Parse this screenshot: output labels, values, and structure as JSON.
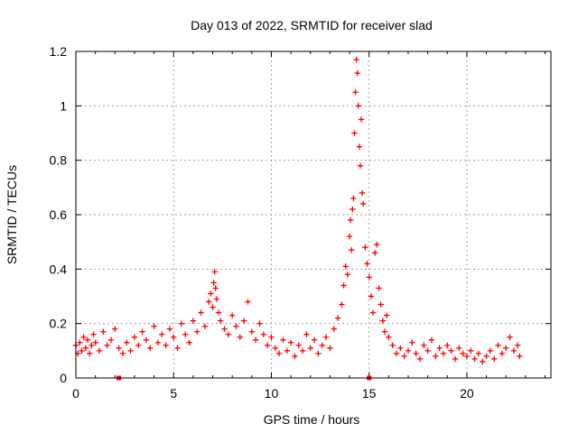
{
  "chart_data": {
    "type": "scatter",
    "title": "Day 013 of 2022, SRMTID for receiver slad",
    "xlabel": "GPS time / hours",
    "ylabel": "SRMTID / TECUs",
    "xlim": [
      0,
      24.3
    ],
    "ylim": [
      0,
      1.2
    ],
    "x_ticks": [
      0,
      5,
      10,
      15,
      20
    ],
    "x_tick_labels": [
      "0",
      "5",
      "10",
      "15",
      "20"
    ],
    "y_ticks": [
      0,
      0.2,
      0.4,
      0.6,
      0.8,
      1.0,
      1.2
    ],
    "y_tick_labels": [
      "0",
      "0.2",
      "0.4",
      "0.6",
      "0.8",
      "1",
      "1.2"
    ],
    "grid": true,
    "marker": "plus",
    "series_color": "#ff0000",
    "series": [
      {
        "name": "SRMTID",
        "x": [
          0.0,
          0.1,
          0.2,
          0.3,
          0.4,
          0.5,
          0.6,
          0.7,
          0.8,
          0.9,
          1.0,
          1.2,
          1.4,
          1.6,
          1.8,
          2.0,
          2.2,
          2.4,
          2.6,
          2.8,
          3.0,
          3.2,
          3.4,
          3.6,
          3.8,
          4.0,
          4.2,
          4.4,
          4.6,
          4.8,
          5.0,
          5.2,
          5.4,
          5.6,
          5.8,
          6.0,
          6.2,
          6.4,
          6.6,
          6.8,
          6.9,
          7.0,
          7.05,
          7.1,
          7.15,
          7.2,
          7.3,
          7.4,
          7.6,
          7.8,
          8.0,
          8.2,
          8.4,
          8.6,
          8.8,
          9.0,
          9.2,
          9.4,
          9.6,
          9.8,
          10.0,
          10.2,
          10.4,
          10.6,
          10.8,
          11.0,
          11.2,
          11.4,
          11.6,
          11.8,
          12.0,
          12.2,
          12.4,
          12.6,
          12.8,
          13.0,
          13.2,
          13.4,
          13.6,
          13.7,
          13.8,
          13.9,
          14.0,
          14.05,
          14.1,
          14.15,
          14.2,
          14.25,
          14.3,
          14.35,
          14.4,
          14.45,
          14.5,
          14.55,
          14.6,
          14.65,
          14.7,
          14.8,
          14.9,
          15.0,
          15.1,
          15.2,
          15.3,
          15.4,
          15.5,
          15.6,
          15.7,
          15.8,
          15.9,
          16.0,
          16.2,
          16.4,
          16.6,
          16.8,
          17.0,
          17.2,
          17.4,
          17.6,
          17.8,
          18.0,
          18.2,
          18.4,
          18.6,
          18.8,
          19.0,
          19.2,
          19.4,
          19.6,
          19.8,
          20.0,
          20.2,
          20.4,
          20.6,
          20.8,
          21.0,
          21.2,
          21.4,
          21.6,
          21.8,
          22.0,
          22.2,
          22.4,
          22.6,
          22.7
        ],
        "y": [
          0.12,
          0.09,
          0.13,
          0.1,
          0.15,
          0.11,
          0.14,
          0.09,
          0.12,
          0.16,
          0.13,
          0.1,
          0.17,
          0.12,
          0.14,
          0.18,
          0.11,
          0.09,
          0.13,
          0.1,
          0.15,
          0.12,
          0.17,
          0.14,
          0.11,
          0.19,
          0.13,
          0.16,
          0.12,
          0.18,
          0.15,
          0.11,
          0.2,
          0.16,
          0.13,
          0.21,
          0.17,
          0.24,
          0.19,
          0.28,
          0.31,
          0.26,
          0.35,
          0.39,
          0.33,
          0.29,
          0.24,
          0.21,
          0.18,
          0.16,
          0.23,
          0.19,
          0.15,
          0.21,
          0.28,
          0.17,
          0.14,
          0.2,
          0.16,
          0.12,
          0.15,
          0.11,
          0.09,
          0.14,
          0.1,
          0.13,
          0.08,
          0.12,
          0.1,
          0.16,
          0.11,
          0.14,
          0.09,
          0.12,
          0.15,
          0.11,
          0.18,
          0.22,
          0.27,
          0.34,
          0.41,
          0.38,
          0.52,
          0.58,
          0.47,
          0.62,
          0.66,
          0.9,
          1.05,
          1.17,
          1.12,
          1.0,
          0.85,
          0.78,
          0.95,
          0.68,
          0.64,
          0.48,
          0.42,
          0.37,
          0.3,
          0.24,
          0.46,
          0.49,
          0.33,
          0.27,
          0.21,
          0.17,
          0.23,
          0.15,
          0.12,
          0.09,
          0.11,
          0.08,
          0.1,
          0.13,
          0.09,
          0.07,
          0.12,
          0.1,
          0.14,
          0.08,
          0.11,
          0.09,
          0.12,
          0.1,
          0.07,
          0.11,
          0.09,
          0.08,
          0.1,
          0.07,
          0.09,
          0.06,
          0.08,
          0.1,
          0.07,
          0.12,
          0.09,
          0.11,
          0.15,
          0.1,
          0.12,
          0.08
        ]
      }
    ],
    "outlier_markers_x": [
      2.2,
      15.0
    ]
  }
}
